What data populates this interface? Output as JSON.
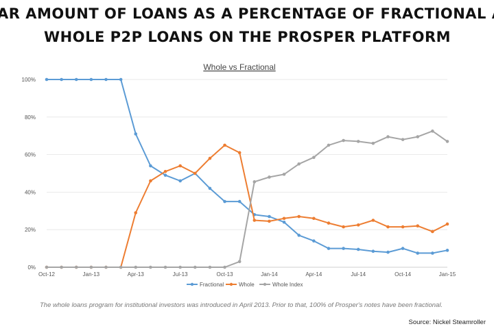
{
  "page": {
    "heading_line1": "AR AMOUNT OF LOANS AS A PERCENTAGE OF FRACTIONAL AN",
    "heading_line2": "WHOLE P2P LOANS ON THE PROSPER PLATFORM",
    "caption": "The whole loans program for institutional investors was introduced in April 2013.  Prior to that, 100% of Prosper's notes have been fractional.",
    "source": "Source: Nickel Steamroller"
  },
  "chart_data": {
    "type": "line",
    "title": "Whole vs Fractional",
    "xlabel": "",
    "ylabel": "",
    "ylim": [
      0,
      100
    ],
    "y_ticks": [
      "0%",
      "20%",
      "40%",
      "60%",
      "80%",
      "100%"
    ],
    "x_tick_labels": [
      "Oct-12",
      "Jan-13",
      "Apr-13",
      "Jul-13",
      "Oct-13",
      "Jan-14",
      "Apr-14",
      "Jul-14",
      "Oct-14",
      "Jan-15"
    ],
    "x": [
      "Oct-12",
      "Nov-12",
      "Dec-12",
      "Jan-13",
      "Feb-13",
      "Mar-13",
      "Apr-13",
      "May-13",
      "Jun-13",
      "Jul-13",
      "Aug-13",
      "Sep-13",
      "Oct-13",
      "Nov-13",
      "Dec-13",
      "Jan-14",
      "Feb-14",
      "Mar-14",
      "Apr-14",
      "May-14",
      "Jun-14",
      "Jul-14",
      "Aug-14",
      "Sep-14",
      "Oct-14",
      "Nov-14",
      "Dec-14",
      "Jan-15"
    ],
    "legend_position": "bottom",
    "grid": true,
    "series": [
      {
        "name": "Fractional",
        "color": "#5b9bd5",
        "values": [
          100,
          100,
          100,
          100,
          100,
          100,
          71,
          54,
          49,
          46,
          50,
          42,
          35,
          35,
          28,
          27,
          24,
          17,
          14,
          10,
          10,
          9.5,
          8.5,
          8,
          10,
          7.5,
          7.5,
          9
        ]
      },
      {
        "name": "Whole",
        "color": "#ed7d31",
        "values": [
          0,
          0,
          0,
          0,
          0,
          0,
          29,
          46,
          51,
          54,
          50,
          58,
          65,
          61,
          25,
          24.5,
          26,
          27,
          26,
          23.5,
          21.5,
          22.5,
          25,
          21.5,
          21.5,
          22,
          19,
          23
        ]
      },
      {
        "name": "Whole Index",
        "color": "#a5a5a5",
        "values": [
          0,
          0,
          0,
          0,
          0,
          0,
          0,
          0,
          0,
          0,
          0,
          0,
          0,
          3,
          45.5,
          48,
          49.5,
          55,
          58.5,
          65,
          67.5,
          67,
          66,
          69.5,
          68,
          69.5,
          72.5,
          67
        ]
      }
    ]
  }
}
